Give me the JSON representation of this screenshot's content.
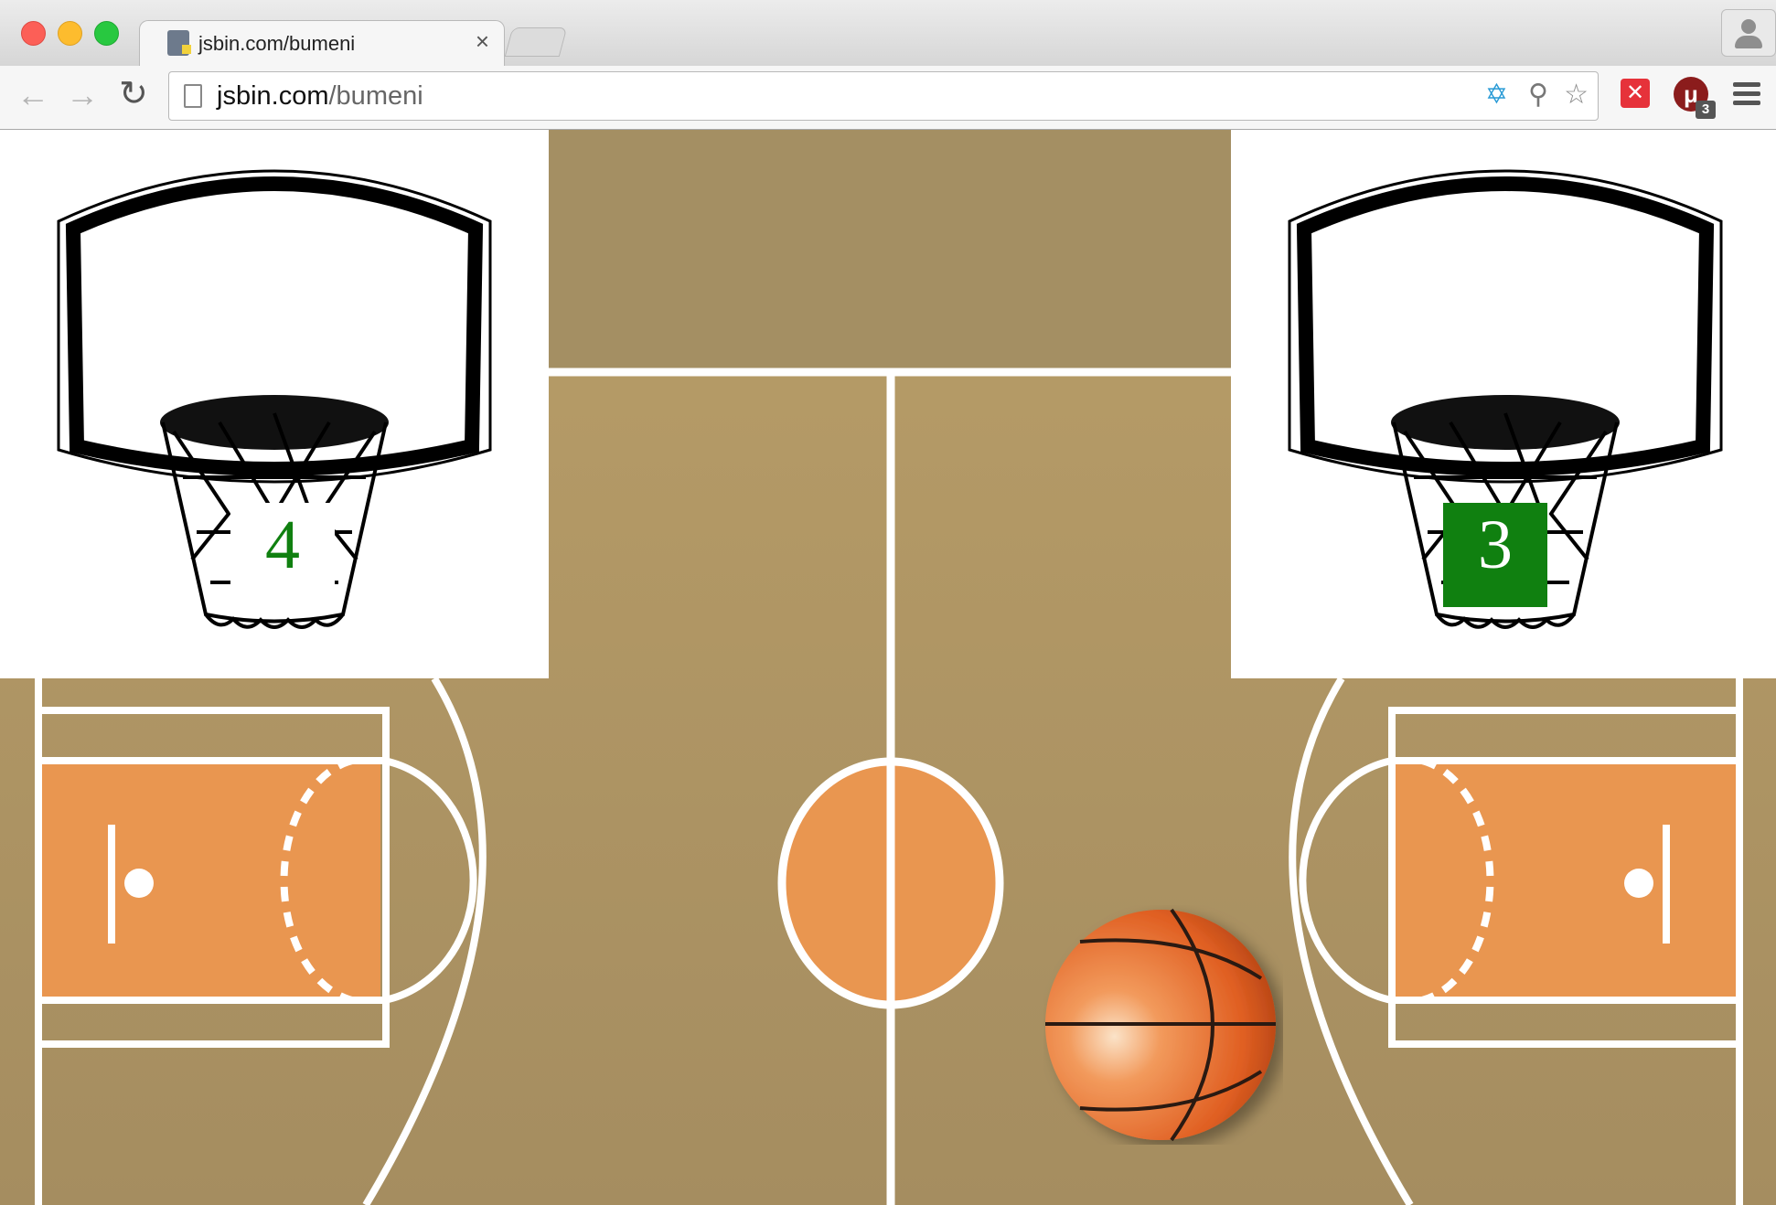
{
  "browser": {
    "tab_title": "jsbin.com/bumeni",
    "tab_close": "×",
    "url_host": "jsbin.com",
    "url_path": "/bumeni",
    "extension_badge": "3",
    "extension_ublock_glyph": "μ",
    "extension_red_glyph": "✕"
  },
  "game": {
    "left_score": "4",
    "right_score": "3",
    "score_colors": {
      "green": "#108010",
      "white": "#ffffff"
    },
    "court_colors": {
      "floor": "#a58e62",
      "paint": "#e99650",
      "lines": "#ffffff"
    }
  }
}
